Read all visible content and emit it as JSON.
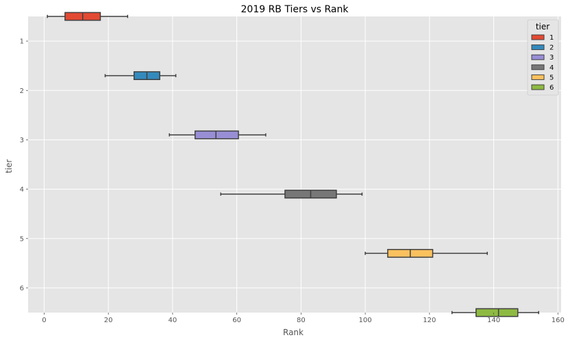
{
  "chart_data": {
    "type": "boxplot",
    "orientation": "horizontal",
    "title": "2019 RB Tiers vs Rank",
    "xlabel": "Rank",
    "ylabel": "tier",
    "xlim": [
      -5,
      161
    ],
    "xticks": [
      0,
      20,
      40,
      60,
      80,
      100,
      120,
      140,
      160
    ],
    "categories": [
      "1",
      "2",
      "3",
      "4",
      "5",
      "6"
    ],
    "grid": true,
    "legend": {
      "title": "tier",
      "position": "top-right"
    },
    "series": [
      {
        "name": "1",
        "color": "#E24A33",
        "whisker_low": 1,
        "q1": 6.5,
        "median": 12,
        "q3": 17.5,
        "whisker_high": 26
      },
      {
        "name": "2",
        "color": "#348ABD",
        "whisker_low": 19,
        "q1": 28,
        "median": 32,
        "q3": 36,
        "whisker_high": 41
      },
      {
        "name": "3",
        "color": "#988ED5",
        "whisker_low": 39,
        "q1": 47,
        "median": 53.5,
        "q3": 60.5,
        "whisker_high": 69
      },
      {
        "name": "4",
        "color": "#777777",
        "whisker_low": 55,
        "q1": 75,
        "median": 83,
        "q3": 91,
        "whisker_high": 99
      },
      {
        "name": "5",
        "color": "#FBC15E",
        "whisker_low": 100,
        "q1": 107,
        "median": 114,
        "q3": 121,
        "whisker_high": 138
      },
      {
        "name": "6",
        "color": "#8EBA42",
        "whisker_low": 127,
        "q1": 134.5,
        "median": 141.5,
        "q3": 147.5,
        "whisker_high": 154
      }
    ]
  }
}
